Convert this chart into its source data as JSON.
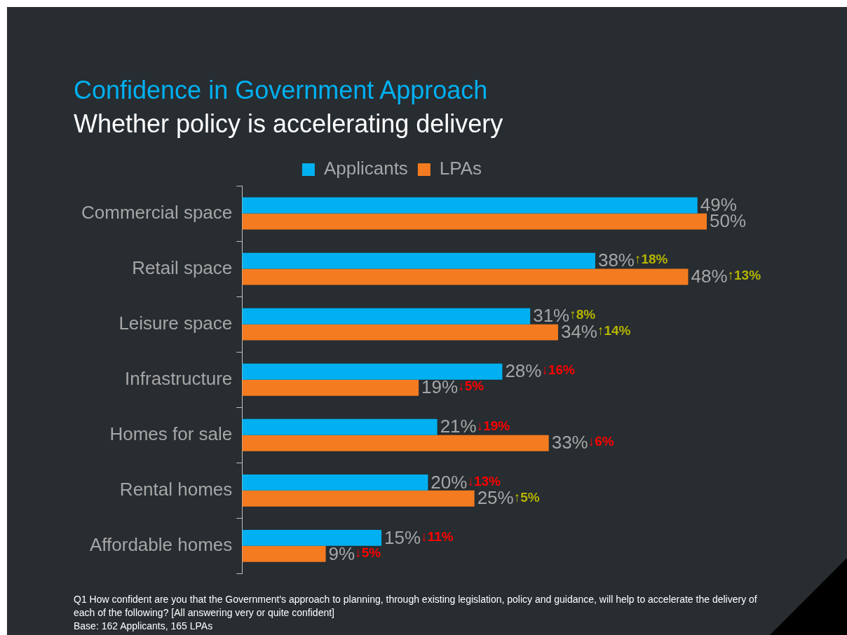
{
  "chart_data": {
    "type": "bar",
    "orientation": "horizontal",
    "title": "Confidence in Government Approach",
    "subtitle": "Whether policy is accelerating delivery",
    "categories": [
      "Commercial space",
      "Retail space",
      "Leisure space",
      "Infrastructure",
      "Homes for sale",
      "Rental homes",
      "Affordable homes"
    ],
    "series": [
      {
        "name": "Applicants",
        "color": "#00b0f0",
        "values": [
          49,
          38,
          31,
          28,
          21,
          20,
          15
        ],
        "value_labels": [
          "49%",
          "38%",
          "31%",
          "28%",
          "21%",
          "20%",
          "15%"
        ]
      },
      {
        "name": "LPAs",
        "color": "#f47b20",
        "values": [
          50,
          48,
          34,
          19,
          33,
          25,
          9
        ],
        "value_labels": [
          "50%",
          "48%",
          "34%",
          "19%",
          "33%",
          "25%",
          "9%"
        ]
      }
    ],
    "tick_labels": "y",
    "grid": false,
    "legend": "top",
    "annotations": [
      {
        "text": "↑18%",
        "x": 38,
        "y": "Retail space"
      },
      {
        "text": "↑13%",
        "x": 48,
        "y": "Retail space"
      },
      {
        "text": "↑8%",
        "x": 31,
        "y": "Leisure space"
      },
      {
        "text": "↑14%",
        "x": 34,
        "y": "Leisure space"
      },
      {
        "text": "↓16%",
        "x": 28,
        "y": "Infrastructure"
      },
      {
        "text": "↓5%",
        "x": 19,
        "y": "Infrastructure"
      },
      {
        "text": "↓19%",
        "x": 21,
        "y": "Homes for sale"
      },
      {
        "text": "↓6%",
        "x": 33,
        "y": "Homes for sale"
      },
      {
        "text": "↓13%",
        "x": 20,
        "y": "Rental homes"
      },
      {
        "text": "↑5%",
        "x": 25,
        "y": "Rental homes"
      },
      {
        "text": "↓11%",
        "x": 15,
        "y": "Affordable homes"
      },
      {
        "text": "↓5%",
        "x": 9,
        "y": "Affordable homes"
      },
      "Q1 How confident are you that the Government's approach to planning, through existing legislation, policy and guidance, will help to accelerate the delivery of each of the following? [All answering very or quite confident]",
      "Base: 162 Applicants, 165 LPAs"
    ]
  }
}
